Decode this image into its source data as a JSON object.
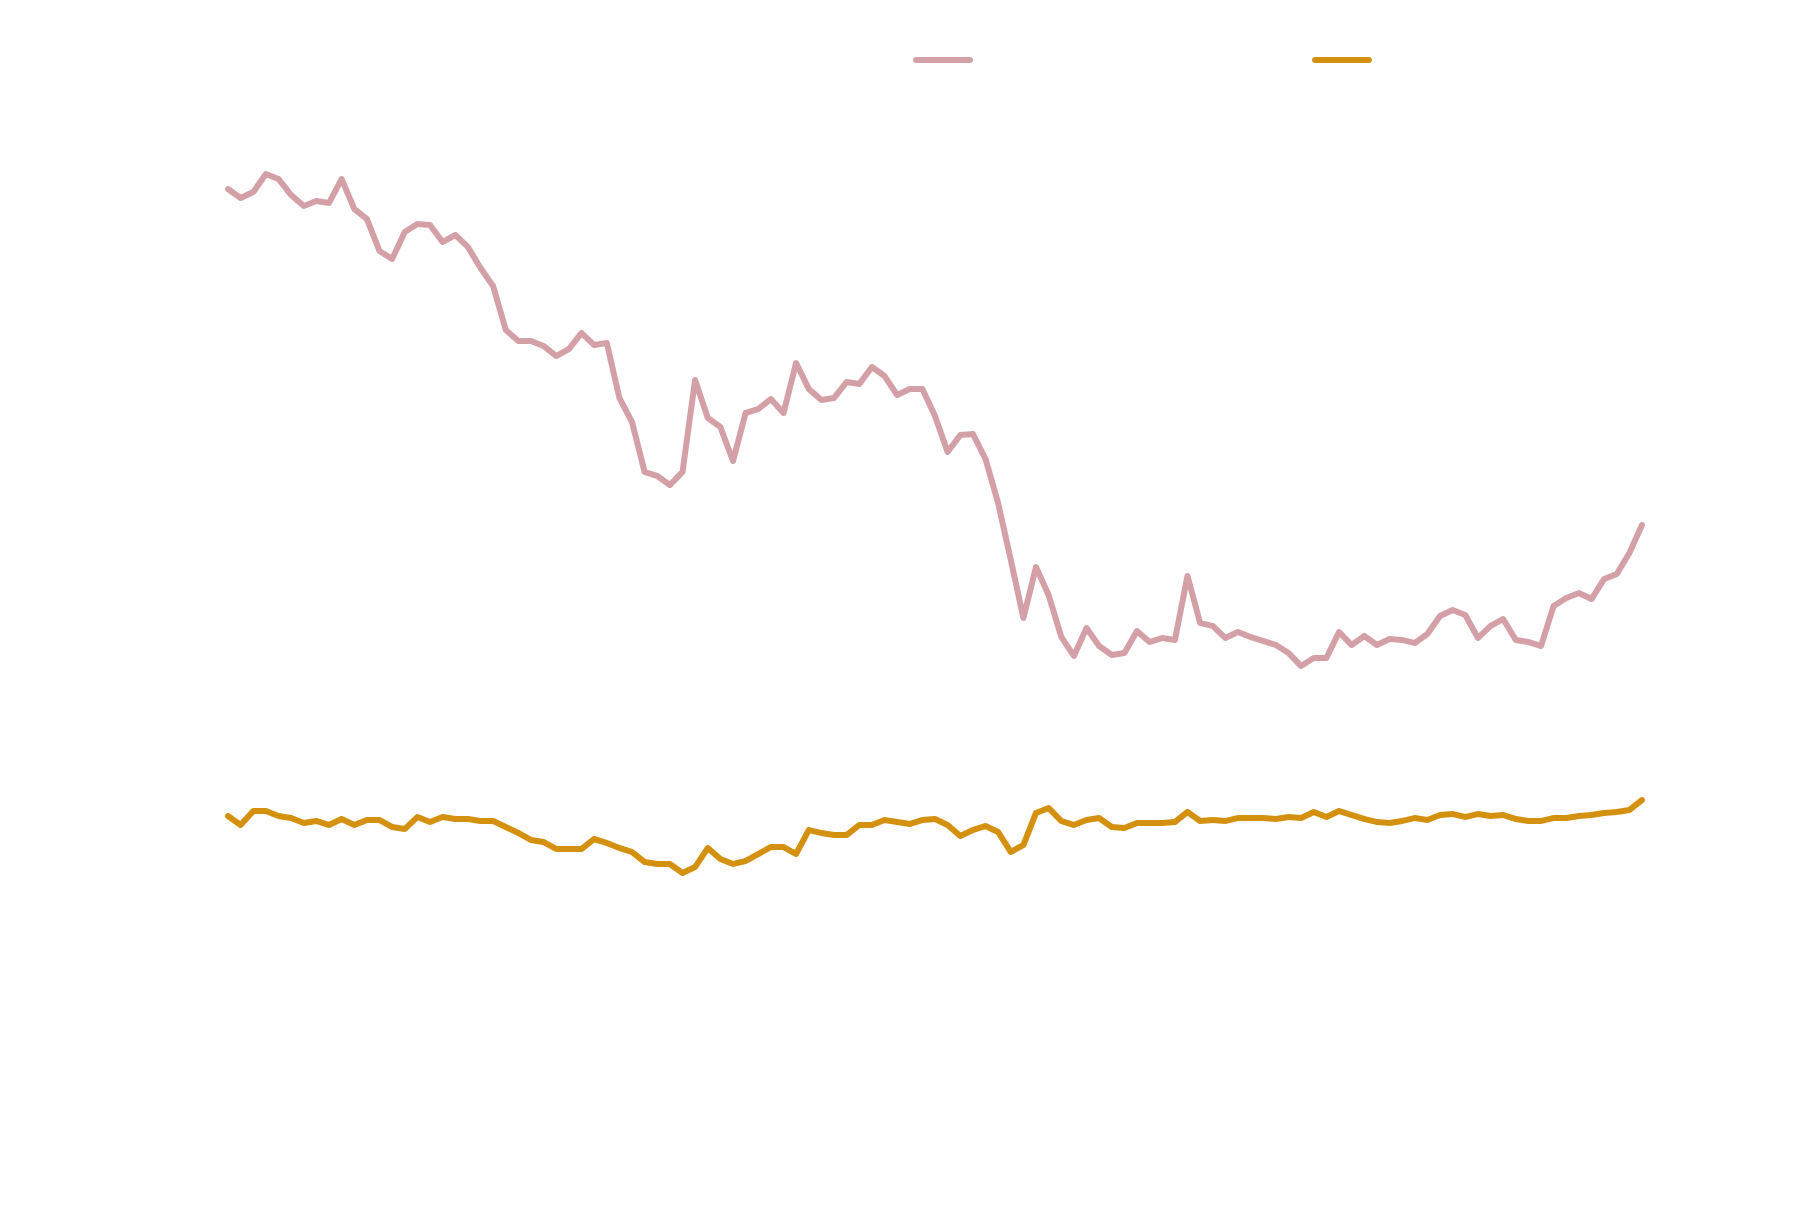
{
  "chart_data": {
    "type": "line",
    "title": "",
    "xlabel": "",
    "ylabel": "",
    "grid": false,
    "legend_placement": "top",
    "x": [
      0,
      1,
      2,
      3,
      4,
      5,
      6,
      7,
      8,
      9,
      10,
      11,
      12,
      13,
      14,
      15,
      16,
      17,
      18,
      19,
      20,
      21,
      22,
      23,
      24,
      25,
      26,
      27,
      28,
      29,
      30,
      31,
      32,
      33,
      34,
      35,
      36,
      37,
      38,
      39,
      40,
      41,
      42,
      43,
      44,
      45,
      46,
      47,
      48,
      49,
      50,
      51,
      52,
      53,
      54,
      55,
      56,
      57,
      58,
      59,
      60,
      61,
      62,
      63,
      64,
      65,
      66,
      67,
      68,
      69,
      70,
      71,
      72,
      73,
      74,
      75,
      76,
      77,
      78,
      79,
      80,
      81,
      82,
      83,
      84,
      85,
      86,
      87,
      88,
      89,
      90,
      91,
      92,
      93,
      94,
      95,
      96,
      97,
      98,
      99,
      100,
      101,
      102,
      103,
      104,
      105,
      106,
      107,
      108,
      109,
      110,
      111,
      112
    ],
    "xlim": [
      0,
      112
    ],
    "ylim": [
      0,
      1209
    ],
    "series": [
      {
        "name": "",
        "color": "#d4a0a7",
        "values": [
          1020,
          1011,
          1017,
          1035,
          1030,
          1014,
          1003,
          1008,
          1006,
          1030,
          1000,
          990,
          958,
          950,
          977,
          985,
          984,
          967,
          974,
          962,
          941,
          923,
          879,
          868,
          868,
          863,
          853,
          860,
          876,
          864,
          866,
          811,
          787,
          737,
          733,
          724,
          737,
          829,
          791,
          782,
          748,
          796,
          800,
          810,
          796,
          846,
          820,
          809,
          811,
          827,
          825,
          842,
          833,
          814,
          820,
          820,
          793,
          757,
          774,
          775,
          750,
          706,
          649,
          591,
          642,
          614,
          572,
          553,
          581,
          563,
          554,
          556,
          578,
          567,
          571,
          569,
          633,
          586,
          583,
          571,
          577,
          572,
          568,
          564,
          556,
          543,
          551,
          551,
          577,
          564,
          573,
          564,
          570,
          569,
          566,
          575,
          593,
          599,
          594,
          571,
          583,
          590,
          569,
          567,
          563,
          603,
          611,
          616,
          610,
          630,
          635,
          656,
          684
        ]
      },
      {
        "name": "",
        "color": "#d4900f",
        "values": [
          393,
          384,
          398,
          398,
          393,
          391,
          386,
          388,
          384,
          390,
          384,
          389,
          389,
          382,
          380,
          392,
          387,
          392,
          390,
          390,
          388,
          388,
          382,
          376,
          369,
          367,
          360,
          360,
          360,
          370,
          366,
          361,
          357,
          347,
          345,
          345,
          336,
          342,
          361,
          350,
          345,
          348,
          355,
          362,
          362,
          355,
          379,
          376,
          374,
          374,
          384,
          384,
          389,
          387,
          385,
          389,
          390,
          384,
          373,
          379,
          383,
          377,
          357,
          364,
          396,
          401,
          388,
          384,
          389,
          391,
          382,
          381,
          386,
          386,
          386,
          387,
          397,
          388,
          389,
          388,
          391,
          391,
          391,
          390,
          392,
          391,
          397,
          392,
          398,
          394,
          390,
          387,
          386,
          388,
          391,
          389,
          394,
          395,
          392,
          395,
          393,
          394,
          390,
          388,
          388,
          391,
          391,
          393,
          394,
          396,
          397,
          399,
          409
        ]
      }
    ]
  }
}
